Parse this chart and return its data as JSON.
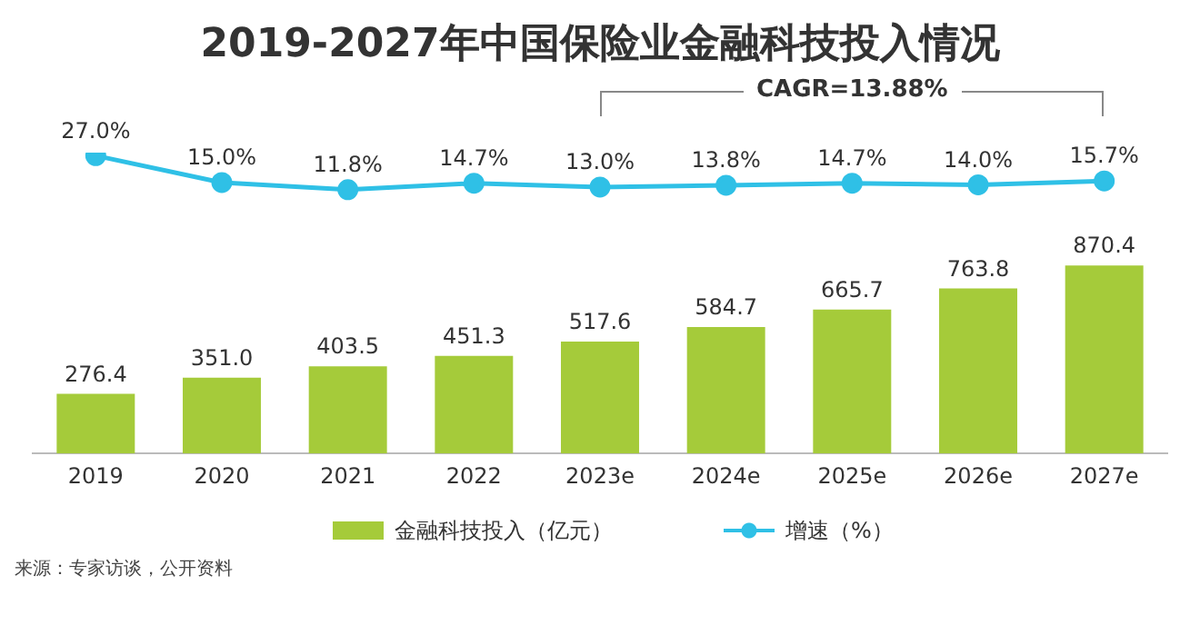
{
  "chart_data": [
    {
      "type": "line",
      "title": "2019-2027年中国保险业金融科技投入情况",
      "categories": [
        "2019",
        "2020",
        "2021",
        "2022",
        "2023e",
        "2024e",
        "2025e",
        "2026e",
        "2027e"
      ],
      "series": [
        {
          "name": "增速（%）",
          "color": "#2fc0e6",
          "values": [
            27.0,
            15.0,
            11.8,
            14.7,
            13.0,
            13.8,
            14.7,
            14.0,
            15.7
          ],
          "value_labels": [
            "27.0%",
            "15.0%",
            "11.8%",
            "14.7%",
            "13.0%",
            "13.8%",
            "14.7%",
            "14.0%",
            "15.7%"
          ]
        }
      ],
      "tick_labels": false,
      "legend": "bottom",
      "marker": "circle",
      "grid": false,
      "annotations": [
        "CAGR=13.88%"
      ]
    },
    {
      "type": "bar",
      "categories": [
        "2019",
        "2020",
        "2021",
        "2022",
        "2023e",
        "2024e",
        "2025e",
        "2026e",
        "2027e"
      ],
      "series": [
        {
          "name": "金融科技投入（亿元）",
          "color": "#a5cb3a",
          "values": [
            276.4,
            351.0,
            403.5,
            451.3,
            517.6,
            584.7,
            665.7,
            763.8,
            870.4
          ],
          "value_labels": [
            "276.4",
            "351.0",
            "403.5",
            "451.3",
            "517.6",
            "584.7",
            "665.7",
            "763.8",
            "870.4"
          ]
        }
      ],
      "tick_labels": "x",
      "legend": "bottom",
      "grid": false,
      "annotations": [
        "来源：专家访谈，公开资料"
      ]
    }
  ]
}
